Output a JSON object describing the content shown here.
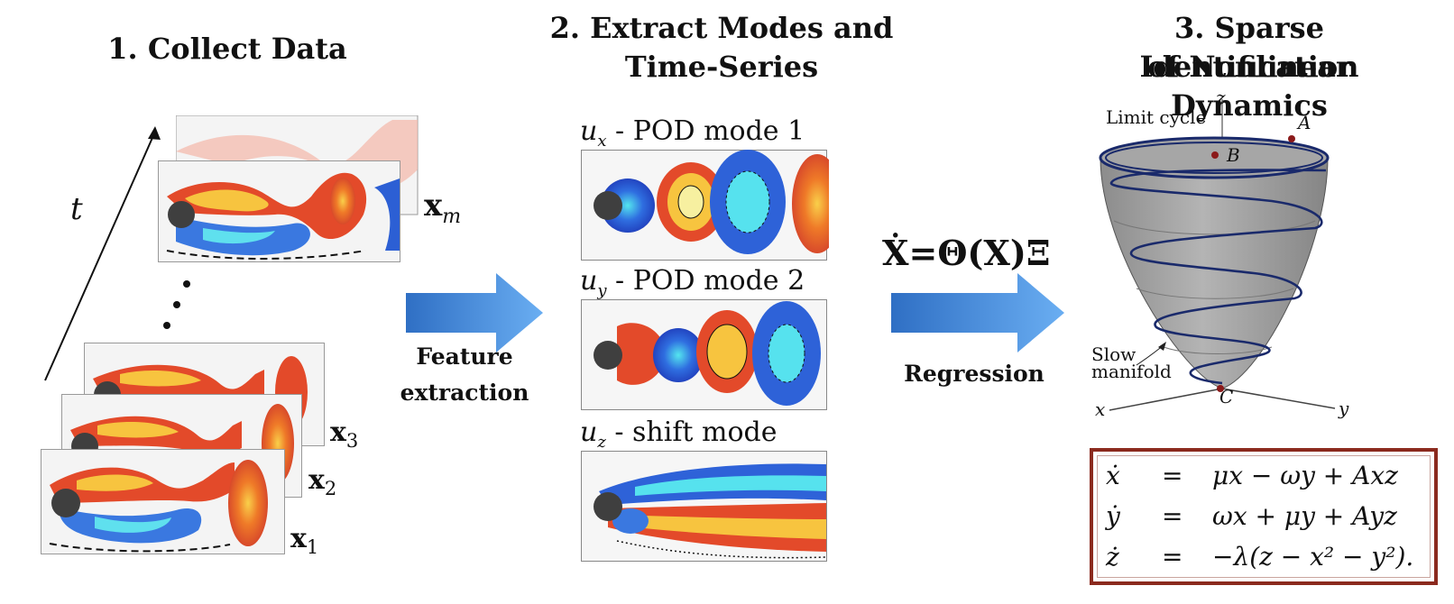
{
  "step1": {
    "title": "1.  Collect Data",
    "time_label": "t",
    "labels": [
      "x_m",
      "x_3",
      "x_2",
      "x_1"
    ],
    "snapshot_labels": {
      "m": "m",
      "3": "3",
      "2": "2",
      "1": "1"
    }
  },
  "step2": {
    "title_line1": "2.  Extract Modes and",
    "title_line2": "Time-Series",
    "modes": [
      {
        "var": "u",
        "sub": "x",
        "text": " - POD mode 1"
      },
      {
        "var": "u",
        "sub": "y",
        "text": " - POD mode 2"
      },
      {
        "var": "u",
        "sub": "z",
        "text": " - shift mode"
      }
    ]
  },
  "arrow1": {
    "label_line1": "Feature",
    "label_line2": "extraction"
  },
  "arrow2": {
    "equation": "Ẋ=Θ(X)Ξ",
    "label": "Regression"
  },
  "step3": {
    "title_line1": "3. Sparse Identification",
    "title_line2": "of Nonlinear Dynamics",
    "axis_x": "x",
    "axis_y": "y",
    "axis_z": "z",
    "limit_cycle": "Limit cycle",
    "slow_manifold_1": "Slow",
    "slow_manifold_2": "manifold",
    "point_a": "A",
    "point_b": "B",
    "point_c": "C"
  },
  "equations": [
    {
      "lhs": "ẋ",
      "eq": "=",
      "rhs": "μx − ωy + Axz"
    },
    {
      "lhs": "ẏ",
      "eq": "=",
      "rhs": "ωx + μy + Ayz"
    },
    {
      "lhs": "ż",
      "eq": "=",
      "rhs": "−λ(z − x² − y²)."
    }
  ],
  "colors": {
    "arrow": "#4a8fe0",
    "box_border": "#8b2a1e",
    "paraboloid": "#9a9a9a",
    "spiral": "#1a2a6b"
  }
}
